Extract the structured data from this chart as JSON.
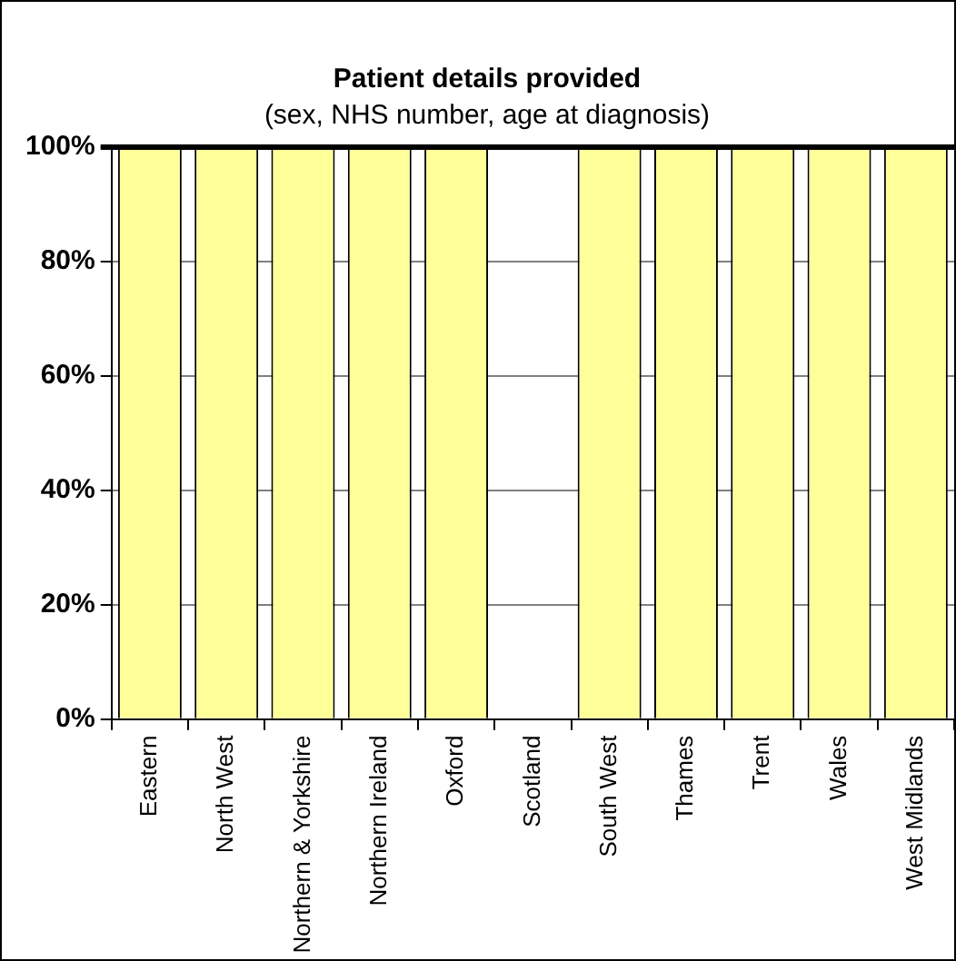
{
  "chart_data": {
    "type": "bar",
    "title": "Patient details provided",
    "subtitle": "(sex, NHS number, age at diagnosis)",
    "categories": [
      "Eastern",
      "North West",
      "Northern & Yorkshire",
      "Northern Ireland",
      "Oxford",
      "Scotland",
      "South West",
      "Thames",
      "Trent",
      "Wales",
      "West Midlands"
    ],
    "values": [
      100,
      100,
      100,
      100,
      100,
      null,
      100,
      100,
      100,
      100,
      100
    ],
    "color": "#ffff99",
    "ylim": [
      0,
      100
    ],
    "yticks": [
      {
        "value": 0,
        "label": "0%"
      },
      {
        "value": 20,
        "label": "20%"
      },
      {
        "value": 40,
        "label": "40%"
      },
      {
        "value": 60,
        "label": "60%"
      },
      {
        "value": 80,
        "label": "80%"
      },
      {
        "value": 100,
        "label": "100%"
      }
    ],
    "ref_lines": [
      {
        "axis": "y",
        "value": 100,
        "color": "#000000"
      }
    ],
    "grid": "y",
    "legend": false
  }
}
